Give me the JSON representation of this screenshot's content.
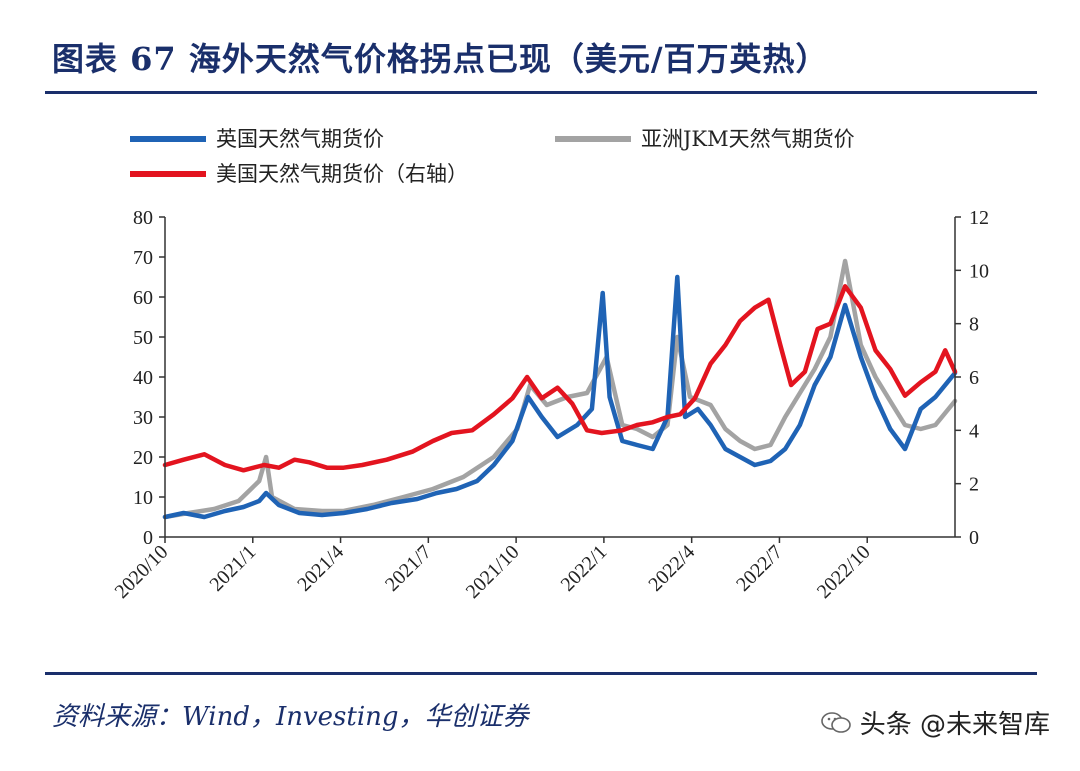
{
  "page": {
    "title": "图表 67  海外天然气价格拐点已现（美元/百万英热）",
    "source": "资料来源：Wind，Investing，华创证券",
    "watermark": "头条 @未来智库",
    "watermark_overlay": "未来智库"
  },
  "chart_data": {
    "type": "line",
    "title": "",
    "xlabel": "",
    "ylabel_left": "",
    "ylabel_right": "",
    "left_axis": {
      "ylim": [
        0,
        80
      ],
      "ticks": [
        "0",
        "10",
        "20",
        "30",
        "40",
        "50",
        "60",
        "70",
        "80"
      ]
    },
    "right_axis": {
      "ylim": [
        0,
        12
      ],
      "ticks": [
        "0",
        "2",
        "4",
        "6",
        "8",
        "10",
        "12"
      ]
    },
    "x_ticks": [
      "2020/10",
      "2021/1",
      "2021/4",
      "2021/7",
      "2021/10",
      "2022/1",
      "2022/4",
      "2022/7",
      "2022/10"
    ],
    "x_range": [
      "2020-10-01",
      "2022-12-15"
    ],
    "grid": false,
    "legend_position": "top",
    "series": [
      {
        "name": "英国天然气期货价",
        "axis": "left",
        "color": "#1f63b5",
        "points": [
          [
            "2020-10-01",
            5
          ],
          [
            "2020-10-20",
            6
          ],
          [
            "2020-11-10",
            5
          ],
          [
            "2020-12-01",
            6.5
          ],
          [
            "2020-12-20",
            7.5
          ],
          [
            "2021-01-05",
            9
          ],
          [
            "2021-01-12",
            11
          ],
          [
            "2021-01-25",
            8
          ],
          [
            "2021-02-15",
            6
          ],
          [
            "2021-03-10",
            5.5
          ],
          [
            "2021-04-01",
            6
          ],
          [
            "2021-04-25",
            7
          ],
          [
            "2021-05-20",
            8.5
          ],
          [
            "2021-06-15",
            9.5
          ],
          [
            "2021-07-05",
            11
          ],
          [
            "2021-07-25",
            12
          ],
          [
            "2021-08-15",
            14
          ],
          [
            "2021-09-01",
            18
          ],
          [
            "2021-09-20",
            24
          ],
          [
            "2021-10-06",
            35
          ],
          [
            "2021-10-20",
            30
          ],
          [
            "2021-11-05",
            25
          ],
          [
            "2021-11-25",
            28
          ],
          [
            "2021-12-10",
            32
          ],
          [
            "2021-12-21",
            61
          ],
          [
            "2021-12-28",
            35
          ],
          [
            "2022-01-10",
            24
          ],
          [
            "2022-01-25",
            23
          ],
          [
            "2022-02-10",
            22
          ],
          [
            "2022-02-25",
            30
          ],
          [
            "2022-03-07",
            65
          ],
          [
            "2022-03-15",
            30
          ],
          [
            "2022-03-28",
            32
          ],
          [
            "2022-04-10",
            28
          ],
          [
            "2022-04-25",
            22
          ],
          [
            "2022-05-10",
            20
          ],
          [
            "2022-05-25",
            18
          ],
          [
            "2022-06-10",
            19
          ],
          [
            "2022-06-25",
            22
          ],
          [
            "2022-07-10",
            28
          ],
          [
            "2022-07-25",
            38
          ],
          [
            "2022-08-10",
            45
          ],
          [
            "2022-08-25",
            58
          ],
          [
            "2022-09-10",
            45
          ],
          [
            "2022-09-25",
            35
          ],
          [
            "2022-10-10",
            27
          ],
          [
            "2022-10-25",
            22
          ],
          [
            "2022-11-10",
            32
          ],
          [
            "2022-11-25",
            35
          ],
          [
            "2022-12-15",
            41
          ]
        ]
      },
      {
        "name": "亚洲JKM天然气期货价",
        "axis": "left",
        "color": "#a3a3a3",
        "points": [
          [
            "2020-10-01",
            5
          ],
          [
            "2020-10-25",
            6
          ],
          [
            "2020-11-20",
            7
          ],
          [
            "2020-12-15",
            9
          ],
          [
            "2021-01-05",
            14
          ],
          [
            "2021-01-12",
            20
          ],
          [
            "2021-01-18",
            10
          ],
          [
            "2021-02-10",
            7
          ],
          [
            "2021-03-10",
            6.5
          ],
          [
            "2021-04-01",
            6.5
          ],
          [
            "2021-05-01",
            8
          ],
          [
            "2021-06-01",
            10
          ],
          [
            "2021-07-01",
            12
          ],
          [
            "2021-08-01",
            15
          ],
          [
            "2021-09-01",
            20
          ],
          [
            "2021-09-25",
            27
          ],
          [
            "2021-10-08",
            38
          ],
          [
            "2021-10-25",
            33
          ],
          [
            "2021-11-15",
            35
          ],
          [
            "2021-12-05",
            36
          ],
          [
            "2021-12-25",
            45
          ],
          [
            "2022-01-10",
            28
          ],
          [
            "2022-01-25",
            27
          ],
          [
            "2022-02-10",
            25
          ],
          [
            "2022-02-25",
            28
          ],
          [
            "2022-03-07",
            50
          ],
          [
            "2022-03-20",
            35
          ],
          [
            "2022-04-10",
            33
          ],
          [
            "2022-04-25",
            27
          ],
          [
            "2022-05-10",
            24
          ],
          [
            "2022-05-25",
            22
          ],
          [
            "2022-06-10",
            23
          ],
          [
            "2022-06-25",
            30
          ],
          [
            "2022-07-10",
            36
          ],
          [
            "2022-07-25",
            42
          ],
          [
            "2022-08-10",
            50
          ],
          [
            "2022-08-25",
            69
          ],
          [
            "2022-09-10",
            48
          ],
          [
            "2022-09-25",
            40
          ],
          [
            "2022-10-10",
            34
          ],
          [
            "2022-10-25",
            28
          ],
          [
            "2022-11-10",
            27
          ],
          [
            "2022-11-25",
            28
          ],
          [
            "2022-12-15",
            34
          ]
        ]
      },
      {
        "name": "美国天然气期货价（右轴）",
        "axis": "right",
        "color": "#e3141f",
        "points": [
          [
            "2020-10-01",
            2.7
          ],
          [
            "2020-10-20",
            2.9
          ],
          [
            "2020-11-10",
            3.1
          ],
          [
            "2020-12-01",
            2.7
          ],
          [
            "2020-12-20",
            2.5
          ],
          [
            "2021-01-10",
            2.7
          ],
          [
            "2021-01-25",
            2.6
          ],
          [
            "2021-02-10",
            2.9
          ],
          [
            "2021-02-25",
            2.8
          ],
          [
            "2021-03-15",
            2.6
          ],
          [
            "2021-04-01",
            2.6
          ],
          [
            "2021-04-20",
            2.7
          ],
          [
            "2021-05-15",
            2.9
          ],
          [
            "2021-06-10",
            3.2
          ],
          [
            "2021-07-01",
            3.6
          ],
          [
            "2021-07-20",
            3.9
          ],
          [
            "2021-08-10",
            4.0
          ],
          [
            "2021-09-01",
            4.6
          ],
          [
            "2021-09-20",
            5.2
          ],
          [
            "2021-10-05",
            6.0
          ],
          [
            "2021-10-20",
            5.2
          ],
          [
            "2021-11-05",
            5.6
          ],
          [
            "2021-11-20",
            5.0
          ],
          [
            "2021-12-05",
            4.0
          ],
          [
            "2021-12-20",
            3.9
          ],
          [
            "2022-01-10",
            4.0
          ],
          [
            "2022-01-25",
            4.2
          ],
          [
            "2022-02-10",
            4.3
          ],
          [
            "2022-02-25",
            4.5
          ],
          [
            "2022-03-10",
            4.6
          ],
          [
            "2022-03-25",
            5.2
          ],
          [
            "2022-04-10",
            6.5
          ],
          [
            "2022-04-25",
            7.2
          ],
          [
            "2022-05-10",
            8.1
          ],
          [
            "2022-05-25",
            8.6
          ],
          [
            "2022-06-08",
            8.9
          ],
          [
            "2022-06-20",
            7.2
          ],
          [
            "2022-07-01",
            5.7
          ],
          [
            "2022-07-15",
            6.2
          ],
          [
            "2022-07-28",
            7.8
          ],
          [
            "2022-08-10",
            8.0
          ],
          [
            "2022-08-25",
            9.4
          ],
          [
            "2022-09-10",
            8.6
          ],
          [
            "2022-09-25",
            7.0
          ],
          [
            "2022-10-10",
            6.3
          ],
          [
            "2022-10-25",
            5.3
          ],
          [
            "2022-11-10",
            5.8
          ],
          [
            "2022-11-25",
            6.2
          ],
          [
            "2022-12-05",
            7.0
          ],
          [
            "2022-12-15",
            6.2
          ]
        ]
      }
    ]
  }
}
